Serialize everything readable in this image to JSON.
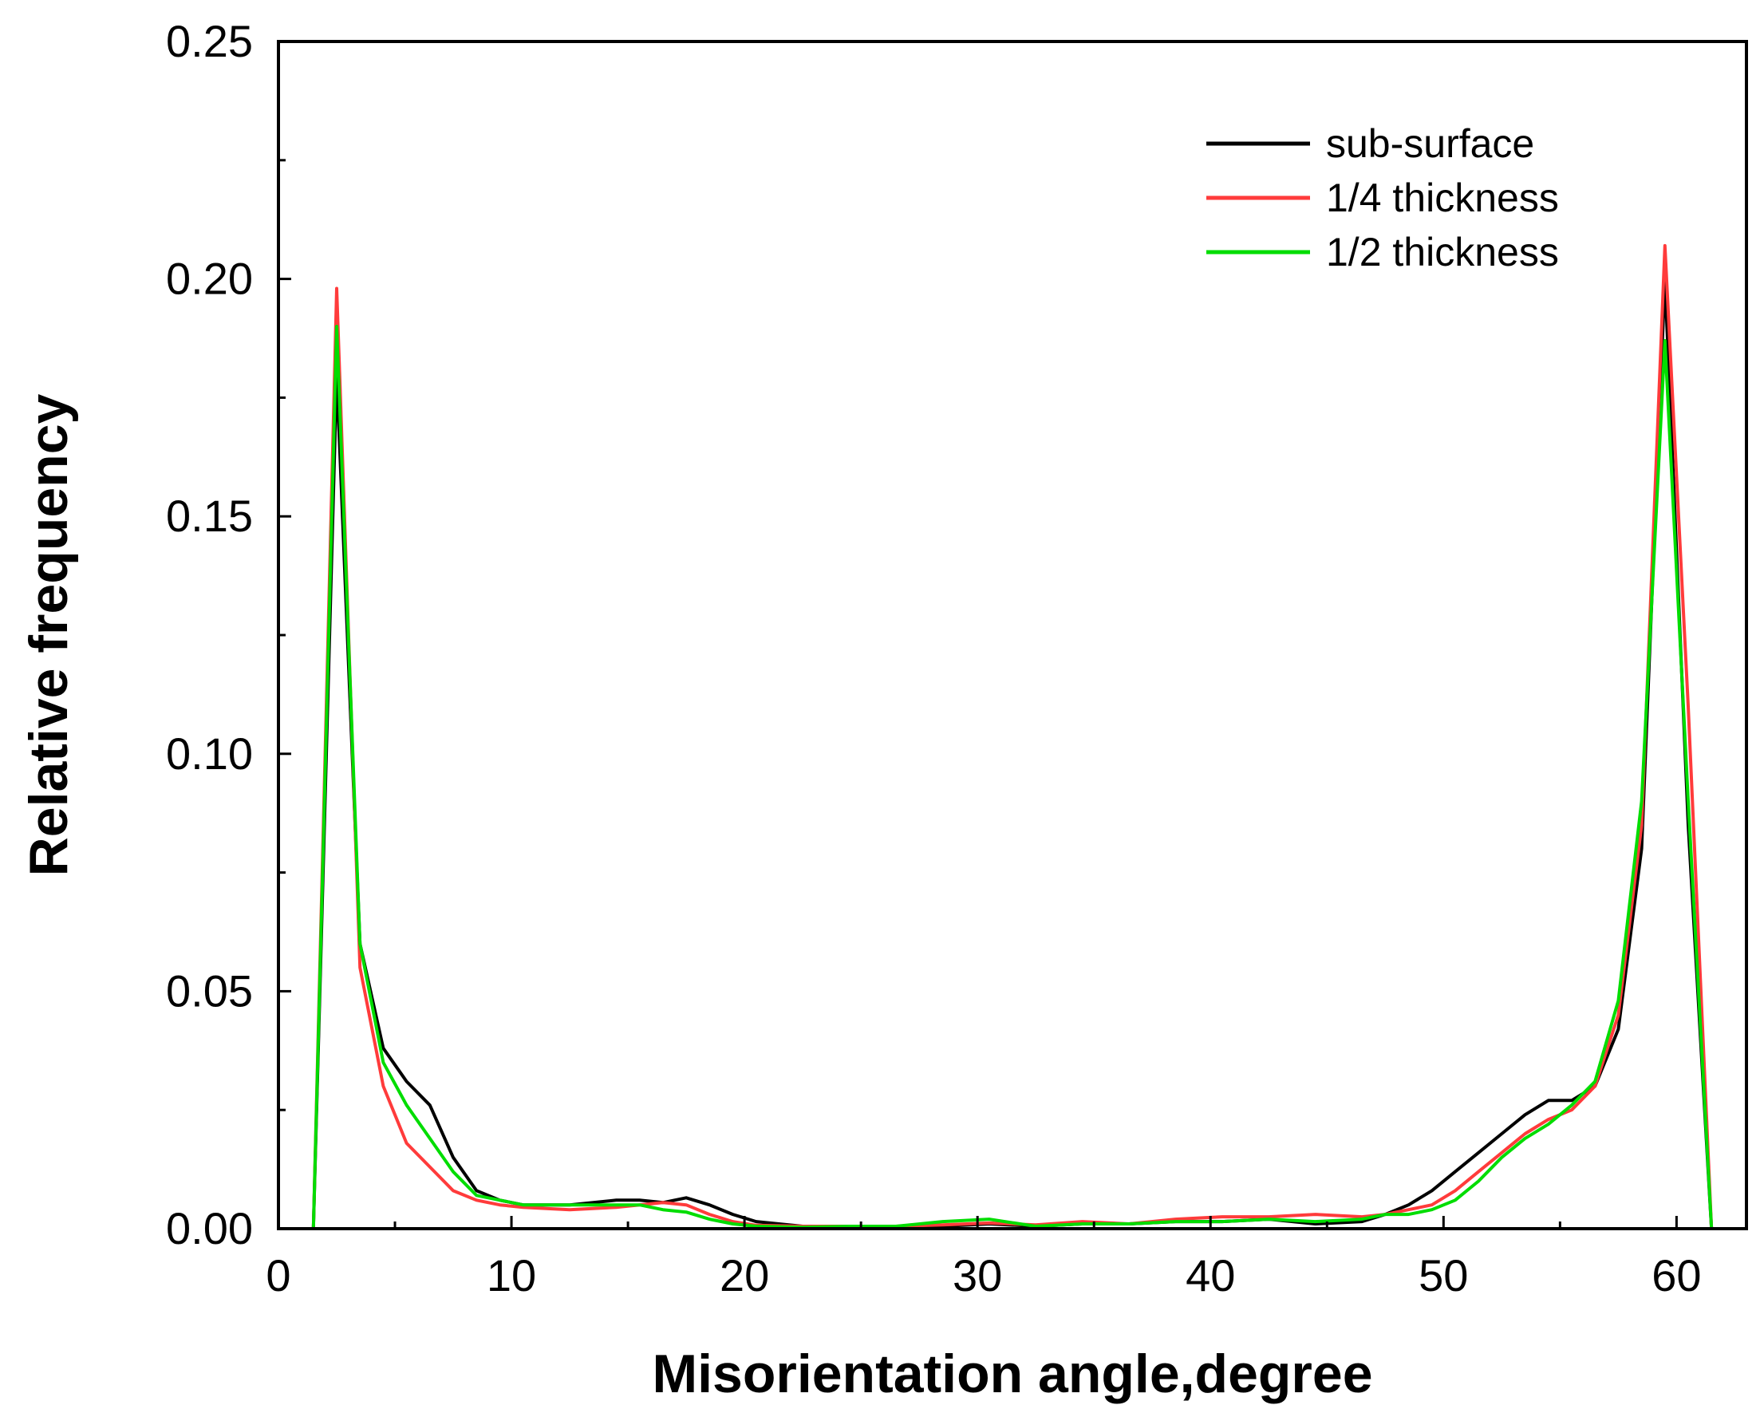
{
  "chart_data": {
    "type": "line",
    "title": "",
    "xlabel": "Misorientation angle,degree",
    "ylabel": "Relative frequency",
    "xlim": [
      0,
      63
    ],
    "ylim": [
      0,
      0.25
    ],
    "xticks": [
      0,
      10,
      20,
      30,
      40,
      50,
      60
    ],
    "xtick_labels": [
      "0",
      "10",
      "20",
      "30",
      "40",
      "50",
      "60"
    ],
    "yticks": [
      0.0,
      0.05,
      0.1,
      0.15,
      0.2,
      0.25
    ],
    "ytick_labels": [
      "0.00",
      "0.05",
      "0.10",
      "0.15",
      "0.20",
      "0.25"
    ],
    "grid": false,
    "legend_position": "top-right",
    "series": [
      {
        "name": "sub-surface",
        "color": "#000000",
        "x": [
          1.5,
          2.5,
          3.5,
          4.5,
          5.5,
          6.5,
          7.5,
          8.5,
          9.5,
          10.5,
          12.5,
          14.5,
          15.5,
          16.5,
          17.5,
          18.5,
          19.5,
          20.5,
          22.5,
          24.5,
          26.5,
          28.5,
          30.5,
          32.5,
          34.5,
          36.5,
          38.5,
          40.5,
          42.5,
          44.5,
          46.5,
          47.5,
          48.5,
          49.5,
          50.5,
          51.5,
          52.5,
          53.5,
          54.5,
          55.5,
          56.5,
          57.5,
          58.5,
          59.5,
          60.5,
          61.5,
          62.5
        ],
        "values": [
          0.0,
          0.18,
          0.06,
          0.038,
          0.031,
          0.026,
          0.015,
          0.008,
          0.006,
          0.005,
          0.005,
          0.006,
          0.006,
          0.0055,
          0.0065,
          0.005,
          0.003,
          0.0015,
          0.0005,
          0.0005,
          0.0003,
          0.0005,
          0.001,
          0.0005,
          0.001,
          0.001,
          0.0015,
          0.0015,
          0.002,
          0.001,
          0.0015,
          0.003,
          0.005,
          0.008,
          0.012,
          0.016,
          0.02,
          0.024,
          0.027,
          0.027,
          0.03,
          0.042,
          0.08,
          0.2,
          0.085,
          0.0,
          0.0
        ]
      },
      {
        "name": "1/4 thickness",
        "color": "#ff3b3b",
        "x": [
          1.5,
          2.5,
          3.5,
          4.5,
          5.5,
          6.5,
          7.5,
          8.5,
          9.5,
          10.5,
          12.5,
          14.5,
          15.5,
          16.5,
          17.5,
          18.5,
          19.5,
          20.5,
          22.5,
          24.5,
          26.5,
          28.5,
          30.5,
          32.5,
          34.5,
          36.5,
          38.5,
          40.5,
          42.5,
          44.5,
          46.5,
          47.5,
          48.5,
          49.5,
          50.5,
          51.5,
          52.5,
          53.5,
          54.5,
          55.5,
          56.5,
          57.5,
          58.5,
          59.5,
          60.5,
          61.5,
          62.5
        ],
        "values": [
          0.0,
          0.198,
          0.055,
          0.03,
          0.018,
          0.013,
          0.008,
          0.006,
          0.005,
          0.0045,
          0.004,
          0.0045,
          0.005,
          0.0055,
          0.005,
          0.003,
          0.0015,
          0.0007,
          0.0005,
          0.0005,
          0.0005,
          0.0008,
          0.0012,
          0.0008,
          0.0015,
          0.001,
          0.002,
          0.0025,
          0.0025,
          0.003,
          0.0025,
          0.003,
          0.004,
          0.005,
          0.008,
          0.012,
          0.016,
          0.02,
          0.023,
          0.025,
          0.03,
          0.045,
          0.085,
          0.207,
          0.11,
          0.0,
          0.0
        ]
      },
      {
        "name": "1/2 thickness",
        "color": "#00dd00",
        "x": [
          1.5,
          2.5,
          3.5,
          4.5,
          5.5,
          6.5,
          7.5,
          8.5,
          9.5,
          10.5,
          12.5,
          14.5,
          15.5,
          16.5,
          17.5,
          18.5,
          19.5,
          20.5,
          22.5,
          24.5,
          26.5,
          28.5,
          30.5,
          32.5,
          34.5,
          36.5,
          38.5,
          40.5,
          42.5,
          44.5,
          46.5,
          47.5,
          48.5,
          49.5,
          50.5,
          51.5,
          52.5,
          53.5,
          54.5,
          55.5,
          56.5,
          57.5,
          58.5,
          59.5,
          60.5,
          61.5,
          62.5
        ],
        "values": [
          0.0,
          0.19,
          0.06,
          0.035,
          0.026,
          0.019,
          0.012,
          0.007,
          0.006,
          0.005,
          0.005,
          0.005,
          0.005,
          0.004,
          0.0035,
          0.002,
          0.001,
          0.0005,
          0.0003,
          0.0005,
          0.0005,
          0.0015,
          0.002,
          0.0005,
          0.001,
          0.001,
          0.0015,
          0.0015,
          0.002,
          0.0015,
          0.002,
          0.003,
          0.003,
          0.004,
          0.006,
          0.01,
          0.015,
          0.019,
          0.022,
          0.026,
          0.031,
          0.048,
          0.09,
          0.187,
          0.09,
          0.0,
          0.0
        ]
      }
    ]
  }
}
